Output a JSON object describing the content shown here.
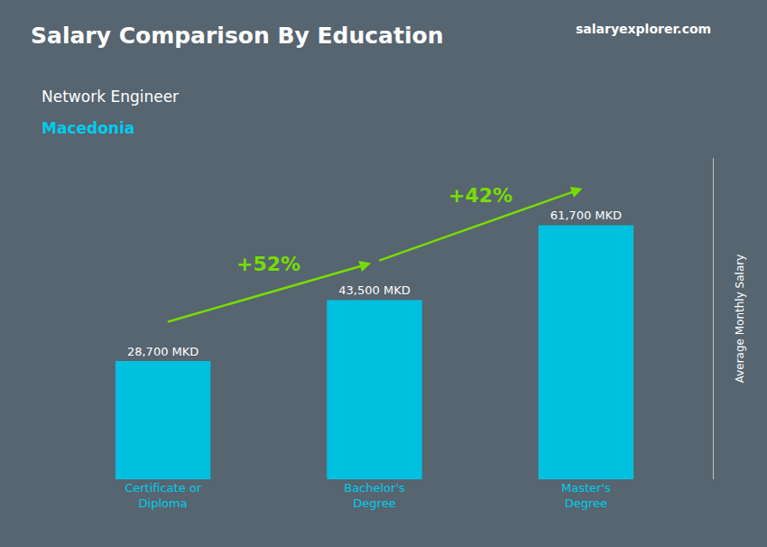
{
  "chart_data": {
    "type": "bar",
    "title": "Salary Comparison By Education",
    "subtitle": "Network Engineer",
    "location": "Macedonia",
    "source": "salaryexplorer.com",
    "categories": [
      "Certificate or\nDiploma",
      "Bachelor's\nDegree",
      "Master's\nDegree"
    ],
    "values": [
      28700,
      43500,
      61700
    ],
    "value_labels": [
      "28,700 MKD",
      "43,500 MKD",
      "61,700 MKD"
    ],
    "data_labels": true,
    "annotations": [
      "+52%",
      "+42%"
    ],
    "color": "#00c0e0",
    "ylabel": "Average Monthly Salary",
    "ylim": [
      0,
      78000
    ],
    "yticks": [],
    "tick_labels": "x",
    "grid": false
  }
}
